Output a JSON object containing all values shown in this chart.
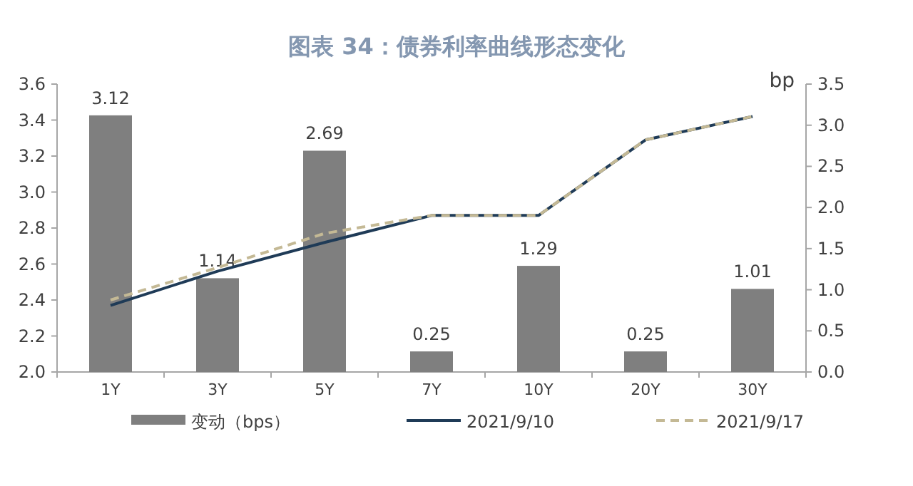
{
  "chart_data": {
    "type": "bar",
    "title": "图表 34：债券利率曲线形态变化",
    "y2label": "bp",
    "categories": [
      "1Y",
      "3Y",
      "5Y",
      "7Y",
      "10Y",
      "20Y",
      "30Y"
    ],
    "series": [
      {
        "name": "变动（bps）",
        "axis": "y2",
        "color": "#7f7f7f",
        "values": [
          3.12,
          1.14,
          2.69,
          0.25,
          1.29,
          0.25,
          1.01
        ],
        "value_labels": [
          "3.12",
          "1.14",
          "2.69",
          "0.25",
          "1.29",
          "0.25",
          "1.01"
        ]
      },
      {
        "name": "2021/9/10",
        "type": "line",
        "color": "#1f3b57",
        "line_style": "solid",
        "values": [
          2.37,
          2.56,
          2.72,
          2.87,
          2.87,
          3.29,
          3.42
        ]
      },
      {
        "name": "2021/9/17",
        "type": "line",
        "color": "#c4b995",
        "line_style": "dashed",
        "values": [
          2.4,
          2.58,
          2.77,
          2.87,
          2.87,
          3.29,
          3.42
        ]
      }
    ],
    "ylim": [
      2.0,
      3.6
    ],
    "yticks": [
      {
        "value": 2.0,
        "label": "2.0"
      },
      {
        "value": 2.2,
        "label": "2.2"
      },
      {
        "value": 2.4,
        "label": "2.4"
      },
      {
        "value": 2.6,
        "label": "2.6"
      },
      {
        "value": 2.8,
        "label": "2.8"
      },
      {
        "value": 3.0,
        "label": "3.0"
      },
      {
        "value": 3.2,
        "label": "3.2"
      },
      {
        "value": 3.4,
        "label": "3.4"
      },
      {
        "value": 3.6,
        "label": "3.6"
      }
    ],
    "y2lim": [
      0,
      3.5
    ],
    "y2ticks": [
      {
        "value": 0,
        "label": "0.0"
      },
      {
        "value": 0.5,
        "label": "0.5"
      },
      {
        "value": 1,
        "label": "1.0"
      },
      {
        "value": 1.5,
        "label": "1.5"
      },
      {
        "value": 2,
        "label": "2.0"
      },
      {
        "value": 2.5,
        "label": "2.5"
      },
      {
        "value": 3,
        "label": "3.0"
      },
      {
        "value": 3.5,
        "label": "3.5"
      }
    ],
    "grid": false,
    "legend": "bottom"
  }
}
